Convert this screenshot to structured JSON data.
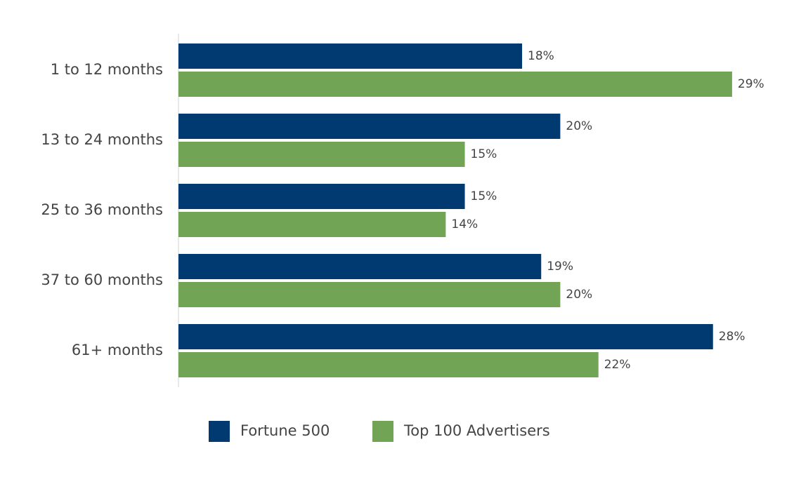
{
  "chart_data": {
    "type": "bar",
    "orientation": "horizontal",
    "categories": [
      "1 to 12 months",
      "13 to 24 months",
      "25 to 36 months",
      "37 to 60 months",
      "61+ months"
    ],
    "series": [
      {
        "name": "Fortune 500",
        "color": "#003a70",
        "values": [
          18,
          20,
          15,
          19,
          28
        ],
        "value_labels": [
          "18%",
          "20%",
          "15%",
          "19%",
          "28%"
        ]
      },
      {
        "name": "Top 100 Advertisers",
        "color": "#72a456",
        "values": [
          29,
          15,
          14,
          20,
          22
        ],
        "value_labels": [
          "29%",
          "15%",
          "14%",
          "20%",
          "22%"
        ]
      }
    ],
    "legend": "bottom"
  }
}
